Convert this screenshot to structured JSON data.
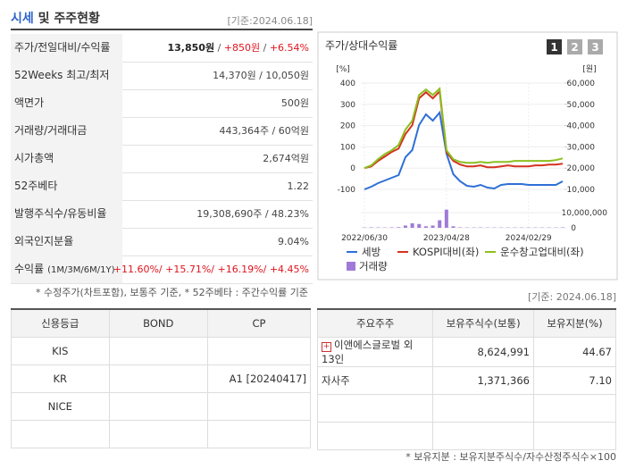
{
  "header": {
    "title_main": "시세",
    "title_rest": "및 주주현황",
    "date": "[기준:2024.06.18]"
  },
  "market_table": {
    "rows": [
      {
        "label": [
          "주가/전일대비/수익률"
        ],
        "value": [
          "13,850원",
          " / ",
          "+850원",
          " / ",
          "+6.54%"
        ],
        "colors": [
          "#222222",
          "#555555",
          "#e0141e",
          "#555555",
          "#e0141e"
        ]
      },
      {
        "label": [
          "52Weeks 최고/최저"
        ],
        "value": [
          "14,370원 / 10,050원"
        ]
      },
      {
        "label": [
          "액면가"
        ],
        "value": [
          "500원"
        ]
      },
      {
        "label": [
          "거래량/거래대금"
        ],
        "value": [
          "443,364주 / 60억원"
        ]
      },
      {
        "label": [
          "시가총액"
        ],
        "value": [
          "2,674억원"
        ]
      },
      {
        "label": [
          "52주베타"
        ],
        "value": [
          "1.22"
        ]
      },
      {
        "label": [
          "발행주식수/유동비율"
        ],
        "value": [
          "19,308,690주 / 48.23%"
        ]
      },
      {
        "label": [
          "외국인지분율"
        ],
        "value": [
          "9.04%"
        ]
      },
      {
        "label": [
          "수익률",
          "(1M/3M/6M/1Y)"
        ],
        "value": [
          "+11.60%/ +15.71%/ +16.19%/ +4.45%"
        ],
        "colors": [
          "#e0141e"
        ]
      }
    ],
    "note": "* 수정주가(차트포함), 보통주 기준, * 52주베타 : 주간수익률 기준"
  },
  "chart_data": {
    "type": "line",
    "title": "주가/상대수익률",
    "buttons": [
      "1",
      "2",
      "3"
    ],
    "y_unit": "[%]",
    "y2_unit": "[원]",
    "categories": [
      "2022/06/30",
      null,
      null,
      null,
      null,
      null,
      null,
      null,
      null,
      null,
      null,
      null,
      "2023/04/28",
      null,
      null,
      null,
      null,
      null,
      null,
      null,
      null,
      null,
      null,
      null,
      "2024/02/29",
      null,
      null,
      null,
      null,
      null
    ],
    "ylim": [
      -100,
      400
    ],
    "yticks": [
      400,
      300,
      200,
      100,
      0,
      -100
    ],
    "y2lim": [
      10000,
      60000
    ],
    "y2ticks": [
      {
        "value": 60000,
        "label": "60,000"
      },
      {
        "value": 50000,
        "label": "50,000"
      },
      {
        "value": 40000,
        "label": "40,000"
      },
      {
        "value": 30000,
        "label": "30,000"
      },
      {
        "value": 20000,
        "label": "20,000"
      },
      {
        "value": 10000,
        "label": "10,000"
      }
    ],
    "volume_lim": [
      0,
      13000000
    ],
    "volume_ticks": [
      {
        "value": 10000000,
        "label": "10,000,000"
      },
      0
    ],
    "grid": true,
    "series": [
      {
        "name": "세방",
        "color": "#2f6fd6",
        "axis": "y2",
        "values": [
          10000,
          11260,
          12940,
          14200,
          15460,
          16720,
          25130,
          28490,
          40250,
          45290,
          42350,
          46130,
          26810,
          17140,
          13780,
          11680,
          11260,
          12100,
          10840,
          10420,
          12100,
          12520,
          12520,
          12520,
          12100,
          12100,
          12100,
          12100,
          12100,
          13780
        ]
      },
      {
        "name": "KOSPI대비(좌)",
        "color": "#d4321e",
        "values": [
          0,
          8,
          34,
          55,
          76,
          92,
          160,
          202,
          328,
          357,
          328,
          361,
          76,
          34,
          17,
          8,
          8,
          13,
          4,
          4,
          8,
          13,
          8,
          8,
          8,
          13,
          13,
          17,
          17,
          21
        ]
      },
      {
        "name": "운수창고업대비(좌)",
        "color": "#8cbf1e",
        "values": [
          0,
          13,
          42,
          67,
          84,
          109,
          181,
          223,
          344,
          370,
          344,
          374,
          84,
          42,
          29,
          25,
          25,
          29,
          25,
          29,
          29,
          29,
          34,
          34,
          34,
          34,
          34,
          34,
          38,
          46
        ]
      },
      {
        "name": "거래량",
        "color": "#a07ad8",
        "type": "bar",
        "axis": "volume",
        "values": [
          200000,
          300000,
          250000,
          200000,
          300000,
          400000,
          1500000,
          3000000,
          2500000,
          1000000,
          1500000,
          5000000,
          12000000,
          1000000,
          300000,
          200000,
          200000,
          250000,
          200000,
          200000,
          200000,
          200000,
          200000,
          200000,
          200000,
          200000,
          200000,
          200000,
          200000,
          300000
        ]
      }
    ]
  },
  "date2": "[기준: 2024.06.18]",
  "credit_table": {
    "headers": [
      "신용등급",
      "BOND",
      "CP"
    ],
    "rows": [
      [
        "KIS",
        null,
        null
      ],
      [
        "KR",
        null,
        "A1 [20240417]"
      ],
      [
        "NICE",
        null,
        null
      ]
    ]
  },
  "holder_table": {
    "headers": [
      "주요주주",
      "보유주식수(보통)",
      "보유지분(%)"
    ],
    "rows": [
      [
        "이앤에스글로벌 외 13인",
        "8,624,991",
        "44.67"
      ],
      [
        "자사주",
        "1,371,366",
        "7.10"
      ]
    ]
  },
  "footnote": "* 보유지분 : 보유지분주식수/자수산정주식수×100"
}
